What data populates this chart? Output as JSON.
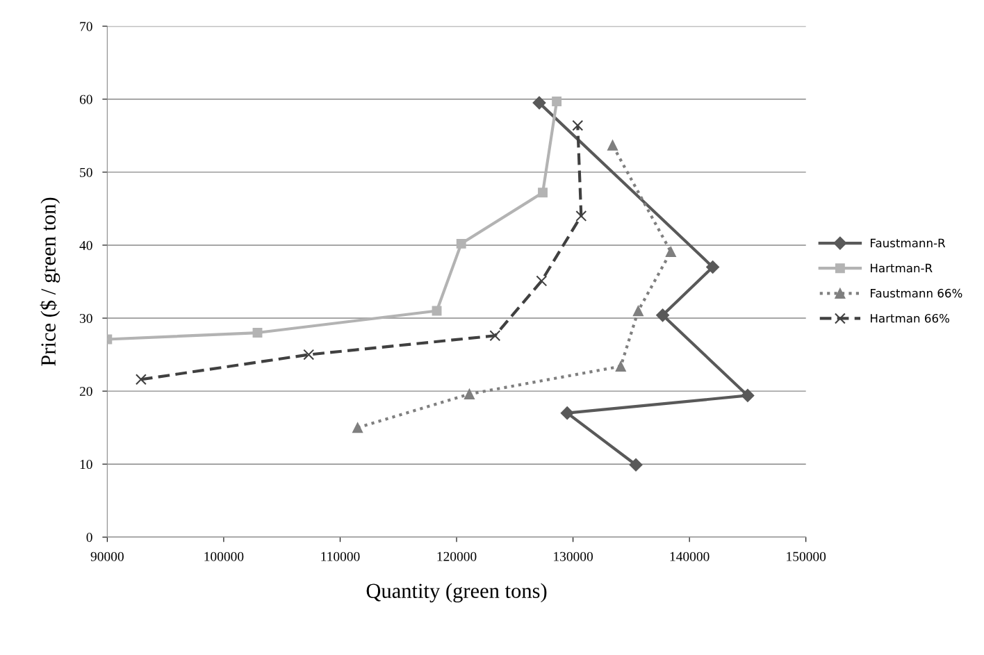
{
  "chart_data": {
    "type": "line",
    "xlabel": "Quantity (green tons)",
    "ylabel": "Price ($ / green ton)",
    "xlim": [
      90000,
      150000
    ],
    "xticks": [
      90000,
      100000,
      110000,
      120000,
      130000,
      140000,
      150000
    ],
    "ylim": [
      0,
      70
    ],
    "yticks": [
      0,
      10,
      20,
      30,
      40,
      50,
      60,
      70
    ],
    "grid": "y",
    "legend": "right",
    "series": [
      {
        "name": "Faustmann-R",
        "color": "#595959",
        "marker": "diamond",
        "line_style": "solid",
        "x": [
          127100,
          142000,
          137700,
          145000,
          129500,
          135400
        ],
        "values": [
          59.5,
          37.0,
          30.4,
          19.4,
          17.0,
          9.9
        ]
      },
      {
        "name": "Hartman-R",
        "color": "#b3b3b3",
        "marker": "square",
        "line_style": "solid",
        "x": [
          90000,
          102900,
          118300,
          120400,
          127400,
          128600
        ],
        "values": [
          27.1,
          28.0,
          31.0,
          40.2,
          47.2,
          59.7
        ]
      },
      {
        "name": "Faustmann 66%",
        "color": "#7f7f7f",
        "marker": "triangle",
        "line_style": "dotted",
        "x": [
          111500,
          121100,
          134100,
          135600,
          138400,
          133400
        ],
        "values": [
          15.0,
          19.6,
          23.4,
          31.0,
          39.1,
          53.7
        ]
      },
      {
        "name": "Hartman 66%",
        "color": "#404040",
        "marker": "cross",
        "line_style": "dashed",
        "x": [
          92900,
          107300,
          123300,
          127300,
          130700,
          130400
        ],
        "values": [
          21.6,
          25.0,
          27.6,
          35.1,
          44.0,
          56.4
        ]
      }
    ]
  }
}
